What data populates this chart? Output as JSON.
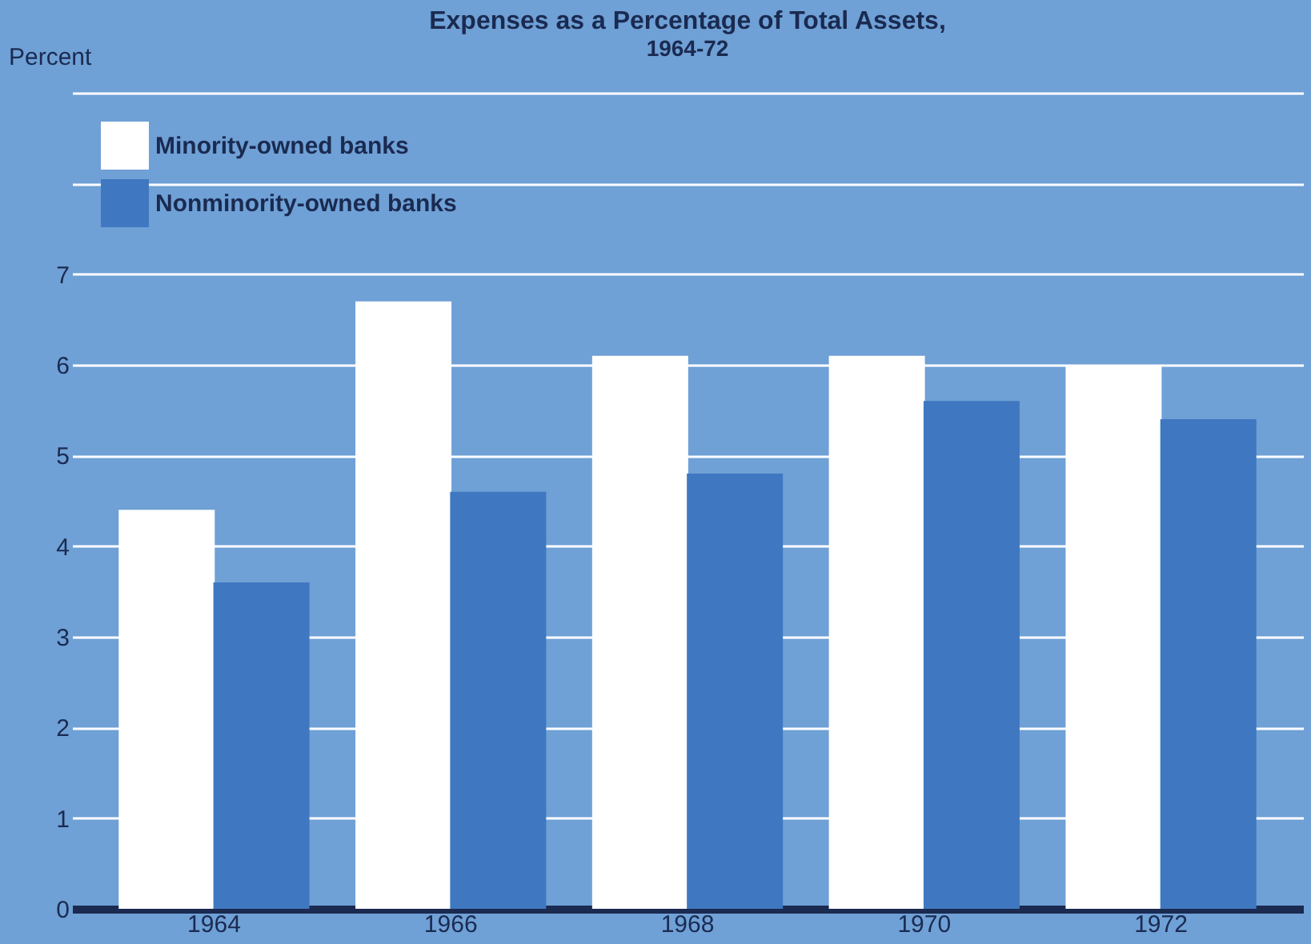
{
  "chart_data": {
    "type": "bar",
    "title": "Expenses as a Percentage of Total Assets,",
    "subtitle": "1964-72",
    "ylabel": "Percent",
    "categories": [
      "1964",
      "1966",
      "1968",
      "1970",
      "1972"
    ],
    "series": [
      {
        "name": "Minority-owned banks",
        "color": "#ffffff",
        "values": [
          4.4,
          6.7,
          6.1,
          6.1,
          6.0
        ]
      },
      {
        "name": "Nonminority-owned banks",
        "color": "#3f78c0",
        "values": [
          3.6,
          4.6,
          4.8,
          5.6,
          5.4
        ]
      }
    ],
    "ylim": [
      0,
      9
    ],
    "yticks": [
      0,
      1,
      2,
      3,
      4,
      5,
      6,
      7,
      {
        "value": 8,
        "label": null
      },
      {
        "value": 9,
        "label": null
      }
    ],
    "grid": "y",
    "legend": "top left"
  }
}
